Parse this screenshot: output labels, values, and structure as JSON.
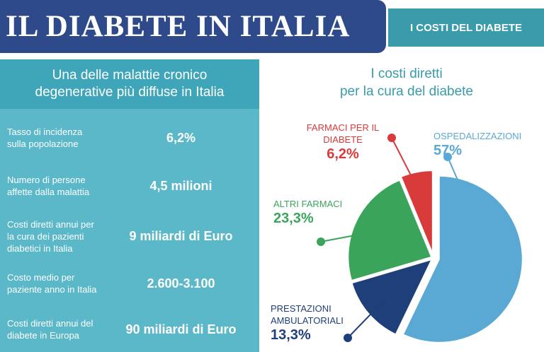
{
  "header": {
    "title": "IL DIABETE IN ITALIA",
    "section": "I COSTI DEL DIABETE"
  },
  "left_panel": {
    "heading": "Una delle malattie cronico degenerative più diffuse in Italia",
    "stats": [
      {
        "label": "Tasso di incidenza sulla popolazione",
        "value": "6,2%"
      },
      {
        "label": "Numero di persone affette dalla malattia",
        "value": "4,5 milioni"
      },
      {
        "label": "Costi diretti annui per la cura dei pazienti diabetici in Italia",
        "value": "9 miliardi di Euro"
      },
      {
        "label": "Costo medio per paziente anno in Italia",
        "value": "2.600-3.100"
      },
      {
        "label": "Costi diretti annui del diabete in Europa",
        "value": "90 miliardi di Euro"
      }
    ]
  },
  "chart_data": {
    "type": "pie",
    "title": "I costi diretti per la cura del diabete",
    "slices": [
      {
        "label": "OSPEDALIZZAZIONI",
        "value": 57,
        "display": "57%",
        "color": "#5aa8d4"
      },
      {
        "label": "PRESTAZIONI AMBULATORIALI",
        "value": 13.3,
        "display": "13,3%",
        "color": "#1f3f7a"
      },
      {
        "label": "ALTRI FARMACI",
        "value": 23.3,
        "display": "23,3%",
        "color": "#3aa55a"
      },
      {
        "label": "FARMACI PER IL DIABETE",
        "value": 6.2,
        "display": "6,2%",
        "color": "#d93a3a"
      }
    ]
  }
}
